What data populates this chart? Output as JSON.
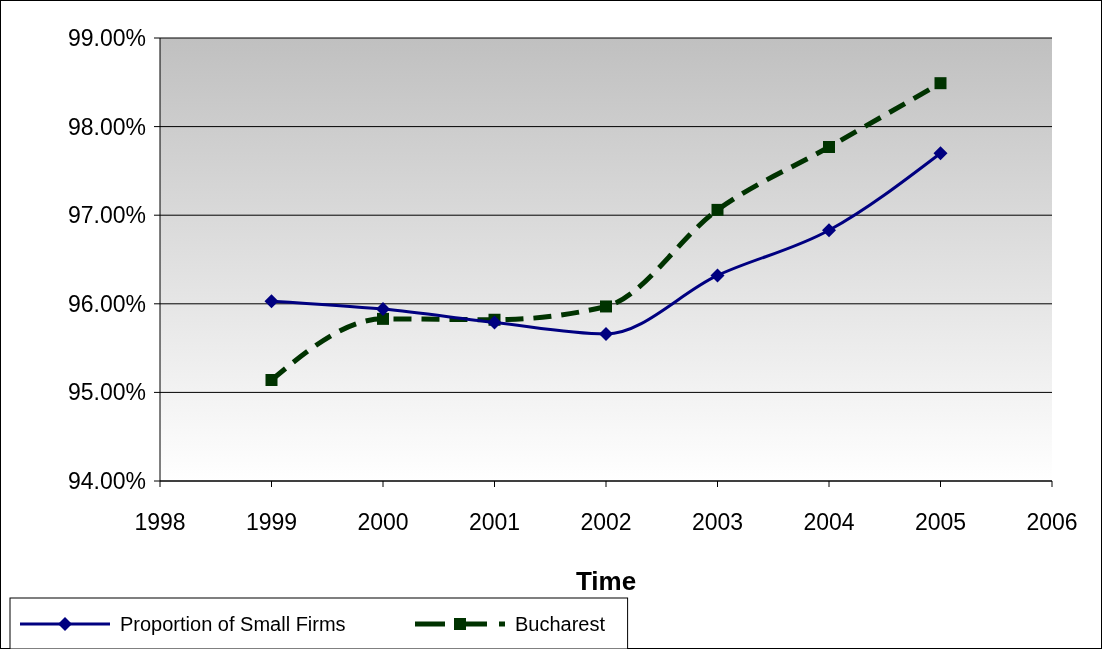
{
  "chart_data": {
    "type": "line",
    "xlabel": "Time",
    "x": [
      1999,
      2000,
      2001,
      2002,
      2003,
      2004,
      2005
    ],
    "series": [
      {
        "name": "Proportion of Small Firms",
        "color": "#000080",
        "marker": "diamond",
        "line_style": "solid",
        "values": [
          96.03,
          95.94,
          95.79,
          95.66,
          96.32,
          96.83,
          97.7
        ]
      },
      {
        "name": "Bucharest",
        "color": "#003300",
        "marker": "square",
        "line_style": "dashed",
        "values": [
          95.14,
          95.83,
          95.82,
          95.97,
          97.06,
          97.77,
          98.49
        ]
      }
    ],
    "xlim": [
      1998,
      2006
    ],
    "xticks": [
      1998,
      1999,
      2000,
      2001,
      2002,
      2003,
      2004,
      2005,
      2006
    ],
    "ylim": [
      94,
      99
    ],
    "yticks": [
      {
        "value": 94,
        "label": "94.00%"
      },
      {
        "value": 95,
        "label": "95.00%"
      },
      {
        "value": 96,
        "label": "96.00%"
      },
      {
        "value": 97,
        "label": "97.00%"
      },
      {
        "value": 98,
        "label": "98.00%"
      },
      {
        "value": 99,
        "label": "99.00%"
      }
    ],
    "grid": "y",
    "legend": "bottom left"
  }
}
